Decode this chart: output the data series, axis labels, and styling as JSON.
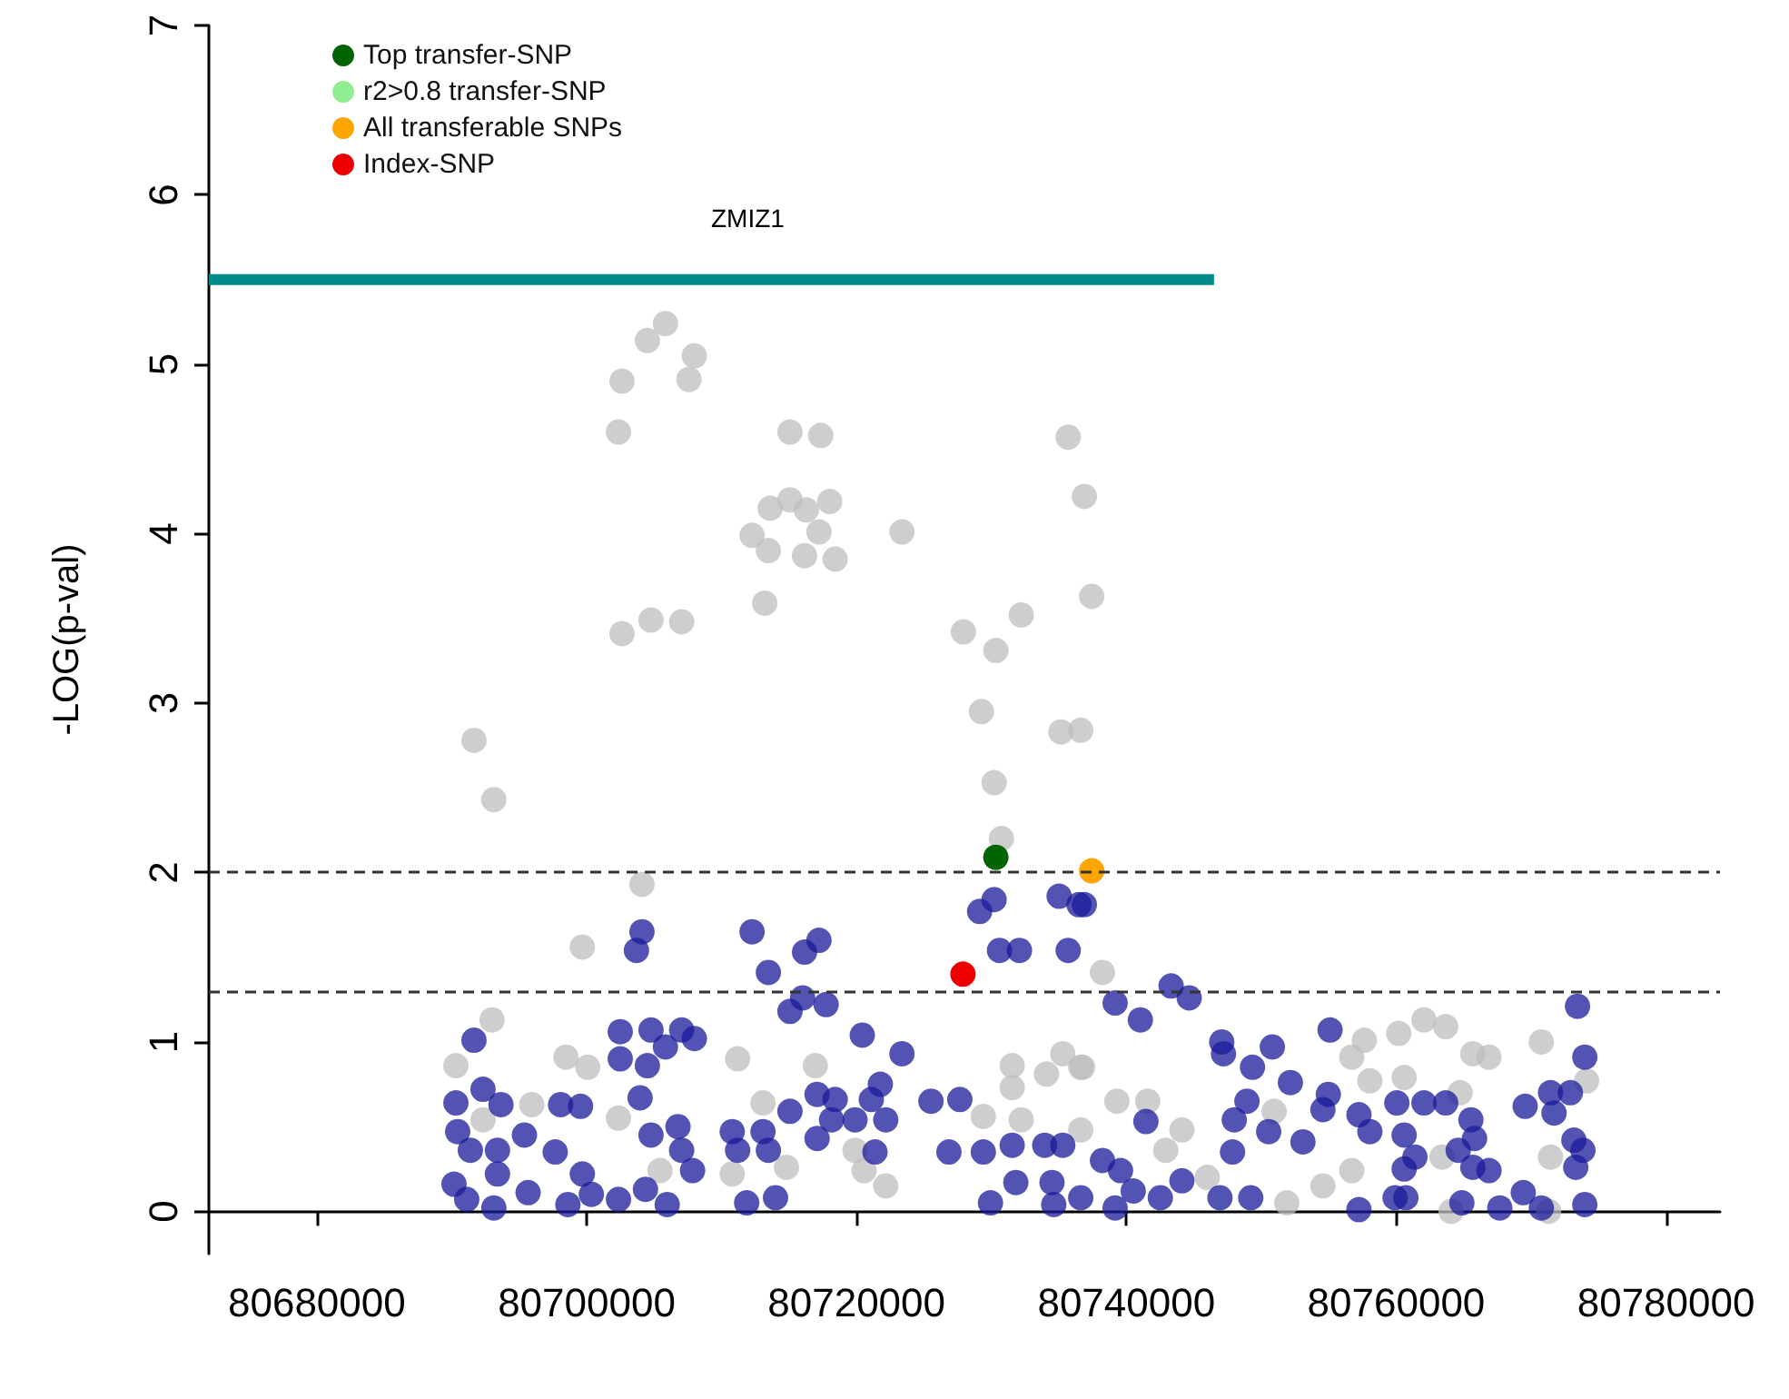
{
  "chart_data": {
    "type": "scatter",
    "ylabel": "-LOG(p-val)",
    "xlim": [
      80672000,
      80784000
    ],
    "xticks": [
      80680000,
      80700000,
      80720000,
      80740000,
      80760000,
      80780000
    ],
    "ylim": [
      -0.25,
      7
    ],
    "yticks": [
      0,
      1,
      2,
      3,
      4,
      5,
      6,
      7
    ],
    "grid": false,
    "legend": "top left",
    "marker": "circle",
    "annotations": [
      "ZMIZ1"
    ],
    "ref_lines": [
      {
        "axis": "y",
        "value": 2,
        "color": "#333333",
        "line_style": "dashed"
      },
      {
        "axis": "y",
        "value": 1.3,
        "color": "#333333",
        "line_style": "dashed"
      }
    ],
    "series": [
      {
        "color": "#bebebe",
        "x": [
          80691650,
          80693120,
          80702360,
          80702620,
          80704500,
          80705840,
          80707980,
          80707580,
          80702620,
          80704770,
          80707040,
          80704100,
          80715070,
          80717350,
          80713600,
          80715070,
          80716280,
          80718020,
          80717220,
          80712260,
          80713470,
          80716150,
          80718420,
          80723370,
          80713200,
          80735690,
          80736890,
          80737430,
          80727920,
          80730330,
          80732210,
          80729260,
          80735150,
          80736620,
          80730200,
          80730740,
          80699680,
          80738230,
          80692990,
          80690310,
          80698470,
          80700080,
          80711190,
          80716950,
          80695930,
          80702360,
          80713070,
          80692320,
          80705440,
          80710790,
          80714810,
          80719890,
          80720560,
          80722170,
          80731540,
          80731540,
          80734080,
          80735290,
          80736620,
          80729400,
          80732210,
          80736760,
          80739300,
          80741580,
          80736620,
          80742920,
          80744120,
          80746000,
          80750950,
          80754570,
          80751890,
          80757640,
          80756710,
          80760190,
          80762060,
          80763670,
          80758050,
          80760590,
          80765680,
          80766880,
          80770760,
          80764740,
          80774110,
          80771440,
          80763400,
          80756710,
          80764070,
          80771300
        ],
        "values": [
          2.78,
          2.43,
          4.6,
          4.9,
          5.14,
          5.24,
          5.05,
          4.91,
          3.41,
          3.49,
          3.48,
          1.93,
          4.6,
          4.58,
          4.15,
          4.2,
          4.14,
          4.19,
          4.01,
          3.99,
          3.9,
          3.87,
          3.85,
          4.01,
          3.59,
          4.57,
          4.22,
          3.63,
          3.42,
          3.31,
          3.52,
          2.95,
          2.83,
          2.84,
          2.53,
          2.2,
          1.56,
          1.41,
          1.13,
          0.86,
          0.91,
          0.85,
          0.9,
          0.86,
          0.63,
          0.55,
          0.64,
          0.54,
          0.24,
          0.22,
          0.26,
          0.36,
          0.24,
          0.15,
          0.86,
          0.73,
          0.81,
          0.93,
          0.85,
          0.56,
          0.54,
          0.85,
          0.65,
          0.65,
          0.48,
          0.36,
          0.48,
          0.2,
          0.59,
          0.15,
          0.05,
          1.01,
          0.91,
          1.05,
          1.13,
          1.09,
          0.77,
          0.79,
          0.93,
          0.91,
          1.0,
          0.7,
          0.77,
          0.32,
          0.32,
          0.24,
          0.0,
          0.0
        ]
      },
      {
        "color": "#1a1a99",
        "x": [
          80704100,
          80703690,
          80712260,
          80713470,
          80716150,
          80717220,
          80729130,
          80730200,
          80730600,
          80732080,
          80735690,
          80735020,
          80736490,
          80736890,
          80743320,
          80744660,
          80739170,
          80741040,
          80773440,
          80715070,
          80716010,
          80717750,
          80691650,
          80720430,
          80723370,
          80702490,
          80704770,
          80707040,
          80707980,
          80702490,
          80704500,
          80705840,
          80690310,
          80692320,
          80693650,
          80690440,
          80691380,
          80693390,
          80695390,
          80693390,
          80690170,
          80691110,
          80693120,
          80695660,
          80697670,
          80698070,
          80699550,
          80699680,
          80698610,
          80700350,
          80702360,
          80703960,
          80704770,
          80706770,
          80707040,
          80707850,
          80704360,
          80705970,
          80710790,
          80711190,
          80713070,
          80715070,
          80713470,
          80711860,
          80714000,
          80717080,
          80718420,
          80718150,
          80719890,
          80717080,
          80721370,
          80721100,
          80721770,
          80722170,
          80725520,
          80727660,
          80726850,
          80729400,
          80731540,
          80733950,
          80735290,
          80729930,
          80731810,
          80734490,
          80734620,
          80738230,
          80739570,
          80740510,
          80736620,
          80739170,
          80742520,
          80744120,
          80741450,
          80747070,
          80747200,
          80750820,
          80749350,
          80752160,
          80748940,
          80748000,
          80747870,
          80750550,
          80753090,
          80746940,
          80749220,
          80755100,
          80754970,
          80754570,
          80757240,
          80758050,
          80760050,
          80762060,
          80763670,
          80760590,
          80761390,
          80760590,
          80759920,
          80757240,
          80760720,
          80764600,
          80765540,
          80765810,
          80765680,
          80766880,
          80764870,
          80767680,
          80769420,
          80770760,
          80769560,
          80771440,
          80771700,
          80772910,
          80773980,
          80773170,
          80773840,
          80773310,
          80773980
        ],
        "values": [
          1.65,
          1.54,
          1.65,
          1.41,
          1.53,
          1.6,
          1.77,
          1.84,
          1.54,
          1.54,
          1.54,
          1.86,
          1.81,
          1.81,
          1.33,
          1.26,
          1.23,
          1.13,
          1.21,
          1.18,
          1.26,
          1.22,
          1.01,
          1.04,
          0.93,
          1.06,
          1.07,
          1.07,
          1.02,
          0.9,
          0.86,
          0.97,
          0.64,
          0.72,
          0.63,
          0.47,
          0.36,
          0.36,
          0.45,
          0.22,
          0.16,
          0.07,
          0.02,
          0.11,
          0.35,
          0.63,
          0.62,
          0.22,
          0.04,
          0.1,
          0.07,
          0.67,
          0.45,
          0.5,
          0.36,
          0.24,
          0.13,
          0.04,
          0.47,
          0.36,
          0.47,
          0.59,
          0.36,
          0.05,
          0.08,
          0.69,
          0.66,
          0.54,
          0.54,
          0.43,
          0.35,
          0.66,
          0.75,
          0.54,
          0.65,
          0.66,
          0.35,
          0.35,
          0.39,
          0.39,
          0.39,
          0.05,
          0.17,
          0.17,
          0.04,
          0.3,
          0.24,
          0.12,
          0.08,
          0.02,
          0.08,
          0.18,
          0.53,
          1.0,
          0.93,
          0.97,
          0.85,
          0.76,
          0.65,
          0.54,
          0.35,
          0.47,
          0.41,
          0.08,
          0.08,
          1.07,
          0.69,
          0.6,
          0.57,
          0.47,
          0.64,
          0.64,
          0.64,
          0.45,
          0.32,
          0.25,
          0.08,
          0.01,
          0.08,
          0.36,
          0.54,
          0.43,
          0.26,
          0.24,
          0.05,
          0.02,
          0.11,
          0.02,
          0.62,
          0.7,
          0.58,
          0.7,
          0.91,
          0.42,
          0.36,
          0.26,
          0.04
        ]
      },
      {
        "type": "line",
        "marker": "none",
        "color": "#008b8b",
        "x": [
          80672000,
          80746500
        ],
        "values": [
          5.5,
          5.5
        ]
      },
      {
        "name": "Top transfer-SNP",
        "color": "#006400",
        "x": [
          80730330
        ],
        "values": [
          2.09
        ]
      },
      {
        "name": "r2>0.8 transfer-SNP",
        "color": "#90ee90"
      },
      {
        "name": "All transferable SNPs",
        "color": "#ffa500",
        "x": [
          80737430
        ],
        "values": [
          2.01
        ]
      },
      {
        "name": "Index-SNP",
        "color": "#ee0000",
        "x": [
          80727890
        ],
        "values": [
          1.4
        ]
      }
    ]
  }
}
